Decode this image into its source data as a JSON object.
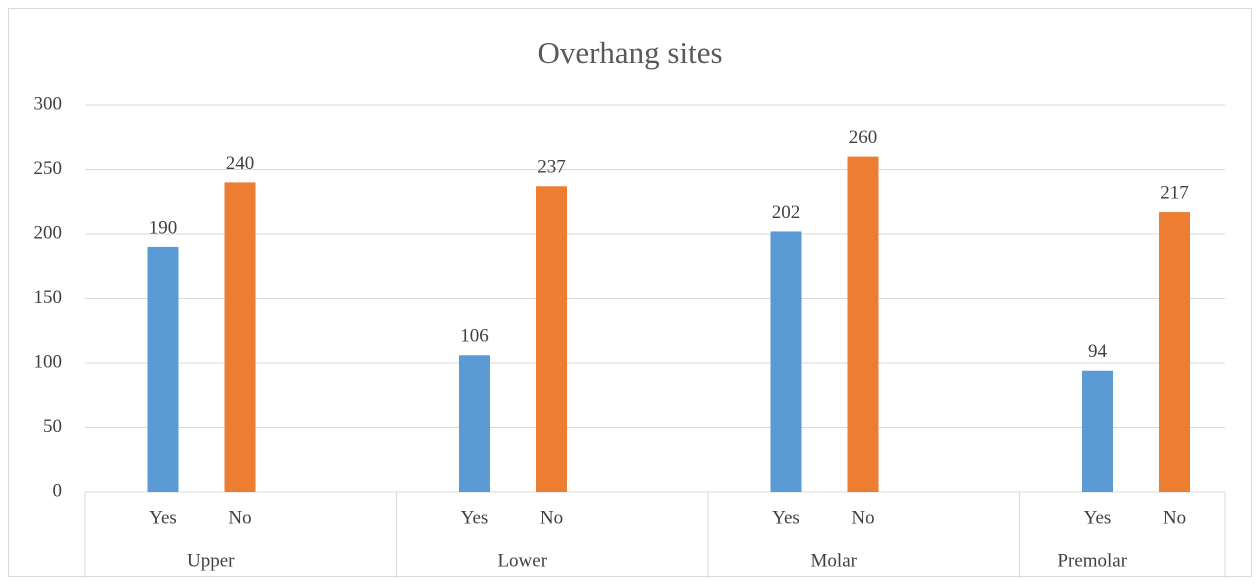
{
  "chart_data": {
    "type": "bar",
    "title": "Overhang sites",
    "groups": [
      "Upper",
      "Lower",
      "Molar",
      "Premolar"
    ],
    "categories": [
      "Yes",
      "No",
      "Yes",
      "No",
      "Yes",
      "No",
      "Yes",
      "No"
    ],
    "values": [
      190,
      240,
      106,
      237,
      202,
      260,
      94,
      217
    ],
    "colors": [
      "#5b9bd5",
      "#ed7d31"
    ],
    "ylim": [
      0,
      300
    ],
    "yticks": [
      0,
      50,
      100,
      150,
      200,
      250,
      300
    ],
    "grid": true
  }
}
